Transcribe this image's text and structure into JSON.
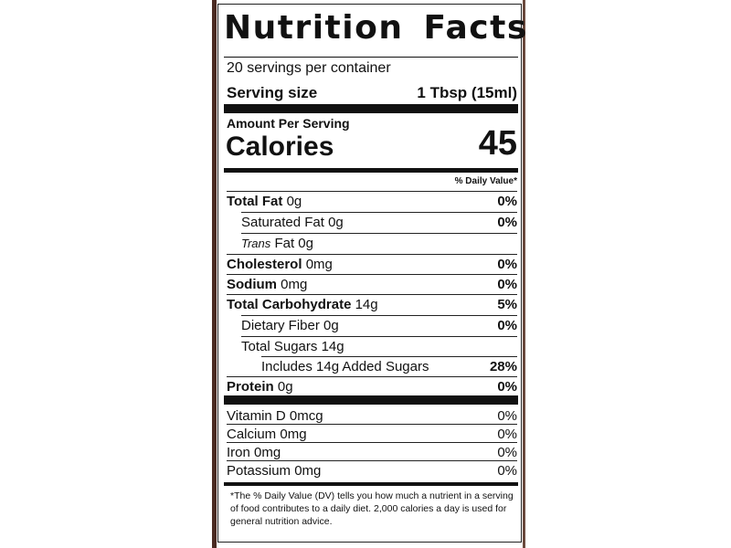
{
  "title": "Nutrition Facts",
  "servings": "20 servings per container",
  "serving_size": {
    "label": "Serving size",
    "value": "1 Tbsp (15ml)"
  },
  "amount_per_serving": "Amount Per Serving",
  "calories": {
    "label": "Calories",
    "value": 45
  },
  "dv_header": "% Daily Value*",
  "nutrients": [
    {
      "name": "Total Fat",
      "amount": "0g",
      "dv": "0%"
    },
    {
      "name": "Saturated Fat",
      "amount": "0g",
      "dv": "0%"
    },
    {
      "name_italic": "Trans",
      "name": "Fat",
      "amount": "0g"
    },
    {
      "name": "Cholesterol",
      "amount": "0mg",
      "dv": "0%"
    },
    {
      "name": "Sodium",
      "amount": "0mg",
      "dv": "0%"
    },
    {
      "name": "Total Carbohydrate",
      "amount": "14g",
      "dv": "5%"
    },
    {
      "name": "Dietary Fiber",
      "amount": "0g",
      "dv": "0%"
    },
    {
      "name": "Total Sugars",
      "amount": "14g"
    },
    {
      "name": "Includes 14g Added Sugars",
      "dv": "28%"
    },
    {
      "name": "Protein",
      "amount": "0g",
      "dv": "0%"
    }
  ],
  "vitamins": [
    {
      "name": "Vitamin D",
      "amount": "0mcg",
      "dv": "0%"
    },
    {
      "name": "Calcium",
      "amount": "0mg",
      "dv": "0%"
    },
    {
      "name": "Iron",
      "amount": "0mg",
      "dv": "0%"
    },
    {
      "name": "Potassium",
      "amount": "0mg",
      "dv": "0%"
    }
  ],
  "footnote": "*The % Daily Value (DV) tells you how much a nutrient in a serving of food contributes to a daily diet. 2,000 calories a day is used for general nutrition advice."
}
